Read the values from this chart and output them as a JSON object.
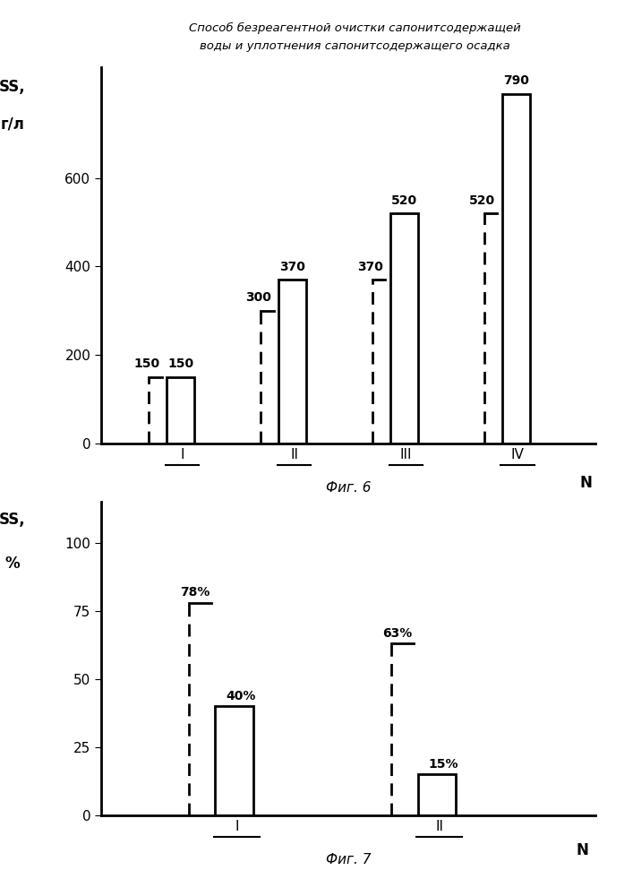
{
  "title_line1": "Способ безреагентной очистки сапонитсодержащей",
  "title_line2": "воды и уплотнения сапонитсодержащего осадка",
  "fig6": {
    "caption": "Фиг. 6",
    "ylabel1": "SS,",
    "ylabel2": "г/л",
    "xlabel": "N",
    "yticks": [
      0,
      200,
      400,
      600
    ],
    "ylim": [
      0,
      850
    ],
    "groups": [
      "I",
      "II",
      "III",
      "IV"
    ],
    "dashed_values": [
      150,
      300,
      370,
      520
    ],
    "solid_values": [
      150,
      370,
      520,
      790
    ],
    "group_positions": [
      1.0,
      2.2,
      3.4,
      4.6
    ]
  },
  "fig7": {
    "caption": "Фиг. 7",
    "ylabel1": "SS,",
    "ylabel2": "%",
    "xlabel": "N",
    "yticks": [
      0,
      25,
      50,
      75,
      100
    ],
    "ylim": [
      0,
      115
    ],
    "groups": [
      "I",
      "II"
    ],
    "dashed_values": [
      78,
      63
    ],
    "solid_values": [
      40,
      15
    ],
    "group_positions": [
      1.2,
      2.8
    ]
  }
}
